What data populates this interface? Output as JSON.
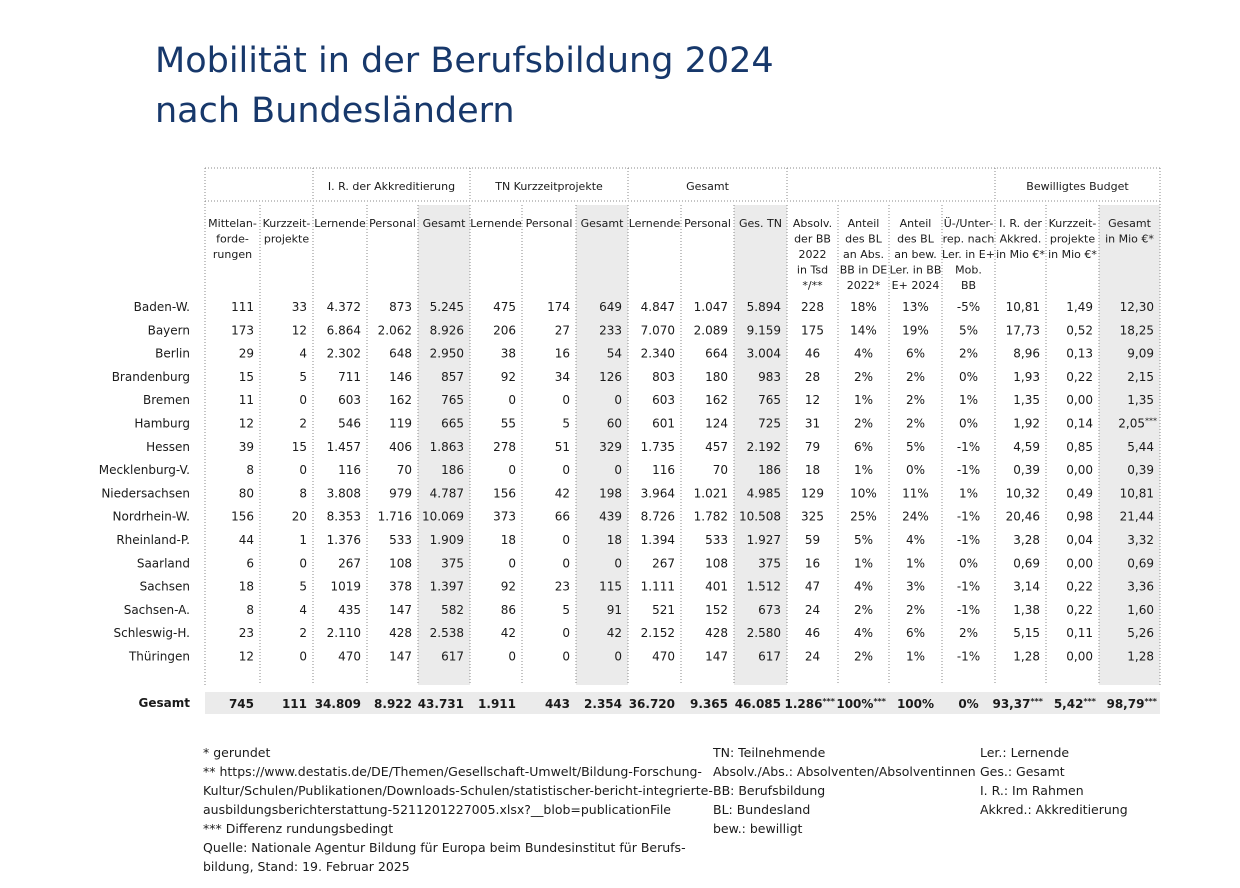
{
  "title": [
    "Mobilität in der Berufsbildung 2024",
    "nach Bundesländern"
  ],
  "table": {
    "groups": [
      "I. R. der Akkreditierung",
      "TN Kurzzeitprojekte",
      "Gesamt",
      "Bewilligtes Budget"
    ],
    "columns": [
      [
        "Mittelan-",
        "forde-",
        "rungen"
      ],
      [
        "Kurzzeit-",
        "projekte"
      ],
      [
        "Lernende"
      ],
      [
        "Personal"
      ],
      [
        "Gesamt"
      ],
      [
        "Lernende"
      ],
      [
        "Personal"
      ],
      [
        "Gesamt"
      ],
      [
        "Lernende"
      ],
      [
        "Personal"
      ],
      [
        "Ges. TN"
      ],
      [
        "Absolv.",
        "der BB",
        "2022",
        "in Tsd",
        "*/**"
      ],
      [
        "Anteil",
        "des BL",
        "an Abs.",
        "BB in DE",
        "2022*"
      ],
      [
        "Anteil",
        "des BL",
        "an bew.",
        "Ler. in BB",
        "E+ 2024"
      ],
      [
        "Ü-/Unter-",
        "rep. nach",
        "Ler. in E+",
        "Mob.",
        "BB"
      ],
      [
        "I. R. der",
        "Akkred.",
        "in Mio €*"
      ],
      [
        "Kurzzeit-",
        "projekte",
        "in Mio €*"
      ],
      [
        "Gesamt",
        "in Mio €*"
      ]
    ],
    "rows": [
      {
        "label": "Baden-W.",
        "cells": [
          "111",
          "33",
          "4.372",
          "873",
          "5.245",
          "475",
          "174",
          "649",
          "4.847",
          "1.047",
          "5.894",
          "228",
          "18%",
          "13%",
          "-5%",
          "10,81",
          "1,49",
          "12,30"
        ]
      },
      {
        "label": "Bayern",
        "cells": [
          "173",
          "12",
          "6.864",
          "2.062",
          "8.926",
          "206",
          "27",
          "233",
          "7.070",
          "2.089",
          "9.159",
          "175",
          "14%",
          "19%",
          "5%",
          "17,73",
          "0,52",
          "18,25"
        ]
      },
      {
        "label": "Berlin",
        "cells": [
          "29",
          "4",
          "2.302",
          "648",
          "2.950",
          "38",
          "16",
          "54",
          "2.340",
          "664",
          "3.004",
          "46",
          "4%",
          "6%",
          "2%",
          "8,96",
          "0,13",
          "9,09"
        ]
      },
      {
        "label": "Brandenburg",
        "cells": [
          "15",
          "5",
          "711",
          "146",
          "857",
          "92",
          "34",
          "126",
          "803",
          "180",
          "983",
          "28",
          "2%",
          "2%",
          "0%",
          "1,93",
          "0,22",
          "2,15"
        ]
      },
      {
        "label": "Bremen",
        "cells": [
          "11",
          "0",
          "603",
          "162",
          "765",
          "0",
          "0",
          "0",
          "603",
          "162",
          "765",
          "12",
          "1%",
          "2%",
          "1%",
          "1,35",
          "0,00",
          "1,35"
        ]
      },
      {
        "label": "Hamburg",
        "cells": [
          "12",
          "2",
          "546",
          "119",
          "665",
          "55",
          "5",
          "60",
          "601",
          "124",
          "725",
          "31",
          "2%",
          "2%",
          "0%",
          "1,92",
          "0,14",
          {
            "text": "2,05",
            "sup": "***"
          }
        ]
      },
      {
        "label": "Hessen",
        "cells": [
          "39",
          "15",
          "1.457",
          "406",
          "1.863",
          "278",
          "51",
          "329",
          "1.735",
          "457",
          "2.192",
          "79",
          "6%",
          "5%",
          "-1%",
          "4,59",
          "0,85",
          "5,44"
        ]
      },
      {
        "label": "Mecklenburg-V.",
        "cells": [
          "8",
          "0",
          "116",
          "70",
          "186",
          "0",
          "0",
          "0",
          "116",
          "70",
          "186",
          "18",
          "1%",
          "0%",
          "-1%",
          "0,39",
          "0,00",
          "0,39"
        ]
      },
      {
        "label": "Niedersachsen",
        "cells": [
          "80",
          "8",
          "3.808",
          "979",
          "4.787",
          "156",
          "42",
          "198",
          "3.964",
          "1.021",
          "4.985",
          "129",
          "10%",
          "11%",
          "1%",
          "10,32",
          "0,49",
          "10,81"
        ]
      },
      {
        "label": "Nordrhein-W.",
        "cells": [
          "156",
          "20",
          "8.353",
          "1.716",
          "10.069",
          "373",
          "66",
          "439",
          "8.726",
          "1.782",
          "10.508",
          "325",
          "25%",
          "24%",
          "-1%",
          "20,46",
          "0,98",
          "21,44"
        ]
      },
      {
        "label": "Rheinland-P.",
        "cells": [
          "44",
          "1",
          "1.376",
          "533",
          "1.909",
          "18",
          "0",
          "18",
          "1.394",
          "533",
          "1.927",
          "59",
          "5%",
          "4%",
          "-1%",
          "3,28",
          "0,04",
          "3,32"
        ]
      },
      {
        "label": "Saarland",
        "cells": [
          "6",
          "0",
          "267",
          "108",
          "375",
          "0",
          "0",
          "0",
          "267",
          "108",
          "375",
          "16",
          "1%",
          "1%",
          "0%",
          "0,69",
          "0,00",
          "0,69"
        ]
      },
      {
        "label": "Sachsen",
        "cells": [
          "18",
          "5",
          "1019",
          "378",
          "1.397",
          "92",
          "23",
          "115",
          "1.111",
          "401",
          "1.512",
          "47",
          "4%",
          "3%",
          "-1%",
          "3,14",
          "0,22",
          "3,36"
        ]
      },
      {
        "label": "Sachsen-A.",
        "cells": [
          "8",
          "4",
          "435",
          "147",
          "582",
          "86",
          "5",
          "91",
          "521",
          "152",
          "673",
          "24",
          "2%",
          "2%",
          "-1%",
          "1,38",
          "0,22",
          "1,60"
        ]
      },
      {
        "label": "Schleswig-H.",
        "cells": [
          "23",
          "2",
          "2.110",
          "428",
          "2.538",
          "42",
          "0",
          "42",
          "2.152",
          "428",
          "2.580",
          "46",
          "4%",
          "6%",
          "2%",
          "5,15",
          "0,11",
          "5,26"
        ]
      },
      {
        "label": "Thüringen",
        "cells": [
          "12",
          "0",
          "470",
          "147",
          "617",
          "0",
          "0",
          "0",
          "470",
          "147",
          "617",
          "24",
          "2%",
          "1%",
          "-1%",
          "1,28",
          "0,00",
          "1,28"
        ]
      }
    ],
    "total": {
      "label": "Gesamt",
      "cells": [
        "745",
        "111",
        "34.809",
        "8.922",
        "43.731",
        "1.911",
        "443",
        "2.354",
        "36.720",
        "9.365",
        "46.085",
        {
          "text": "1.286",
          "sup": "***"
        },
        {
          "text": "100%",
          "sup": "***"
        },
        "100%",
        "0%",
        {
          "text": "93,37",
          "sup": "***"
        },
        {
          "text": "5,42",
          "sup": "***"
        },
        {
          "text": "98,79",
          "sup": "***"
        }
      ]
    }
  },
  "footnotes": {
    "left": [
      "* gerundet",
      "** https://www.destatis.de/DE/Themen/Gesellschaft-Umwelt/Bildung-Forschung-",
      "Kultur/Schulen/Publikationen/Downloads-Schulen/statistischer-bericht-integrierte-",
      "ausbildungsberichterstattung-5211201227005.xlsx?__blob=publicationFile",
      "*** Differenz rundungsbedingt",
      "Quelle: Nationale Agentur Bildung für Europa beim Bundesinstitut für Berufs-",
      "bildung, Stand: 19. Februar 2025"
    ],
    "middle": [
      "TN: Teilnehmende",
      "Absolv./Abs.: Absolventen/Absolventinnen",
      "BB: Berufsbildung",
      "BL: Bundesland",
      "bew.: bewilligt"
    ],
    "right": [
      "Ler.: Lernende",
      "Ges.: Gesamt",
      "I. R.: Im Rahmen",
      "Akkred.: Akkreditierung"
    ]
  }
}
